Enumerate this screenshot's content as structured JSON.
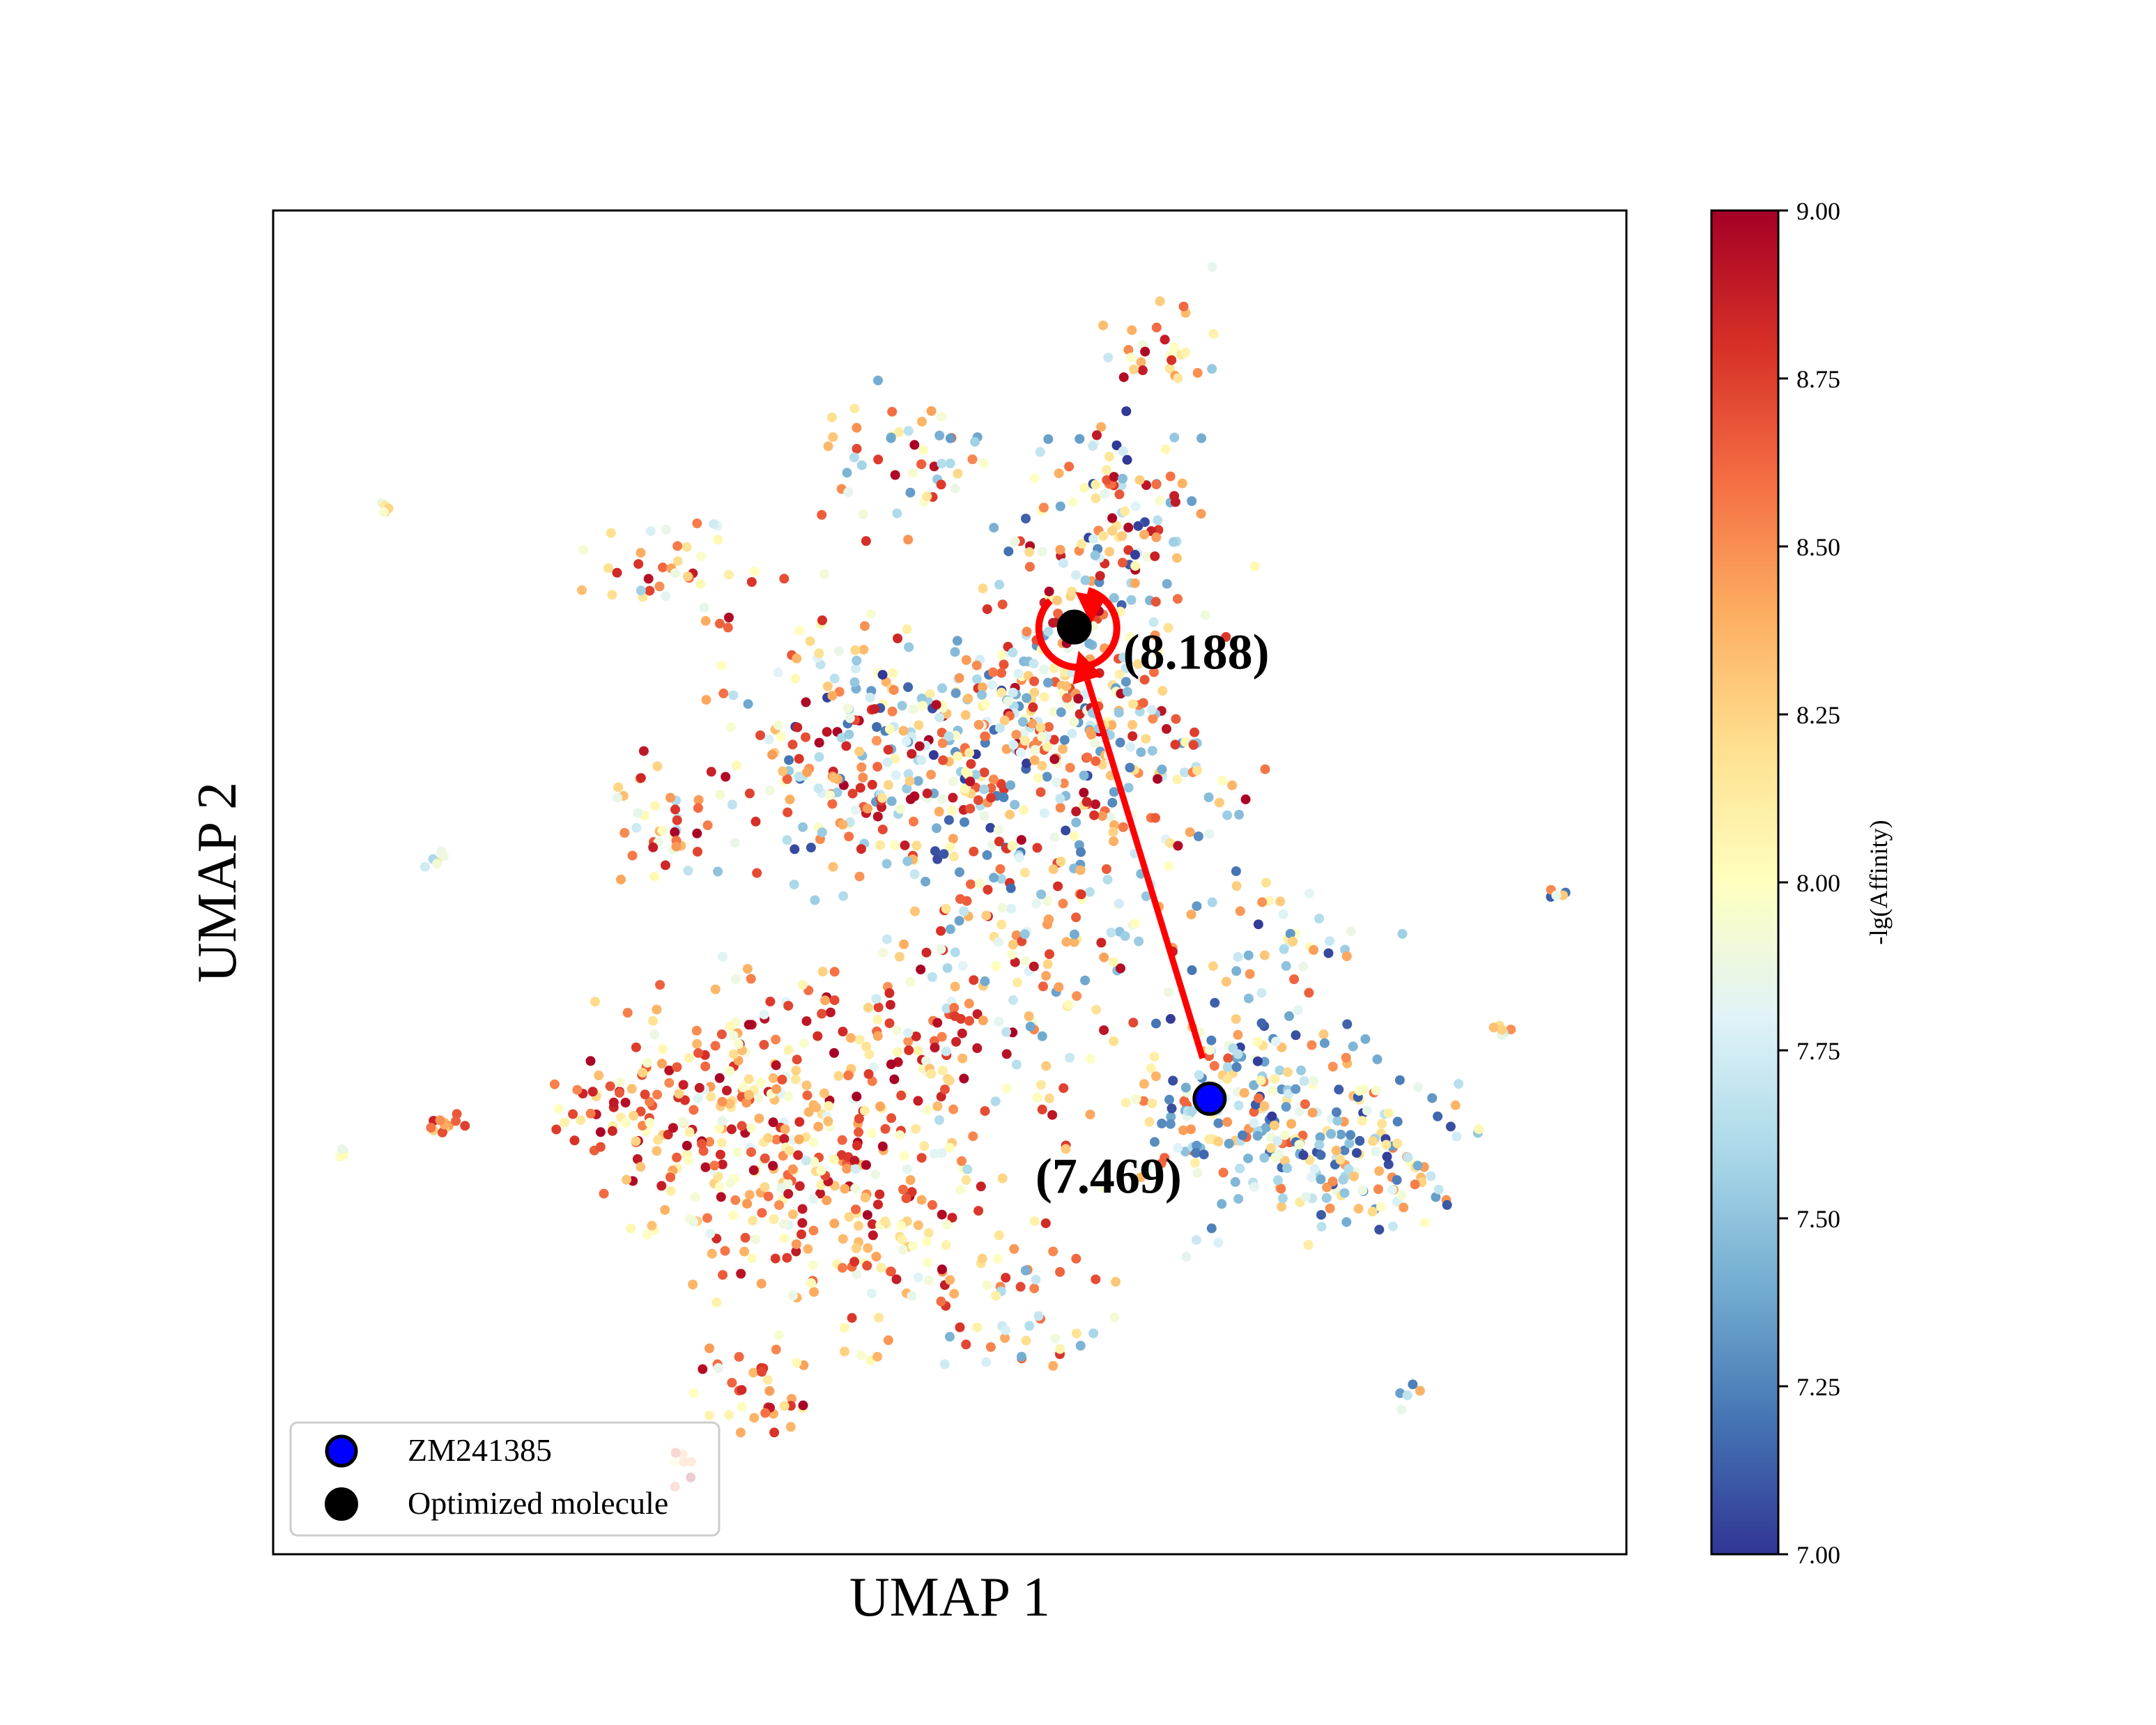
{
  "chart_data": {
    "type": "scatter",
    "title": "",
    "xlabel": "UMAP 1",
    "ylabel": "UMAP 2",
    "xlim": [
      0,
      100
    ],
    "ylim": [
      0,
      100
    ],
    "ticks_visible": false,
    "grid": false,
    "colorbar": {
      "label": "-lg(Affinity)",
      "range": [
        7.0,
        9.0
      ],
      "ticks": [
        "7.00",
        "7.25",
        "7.50",
        "7.75",
        "8.00",
        "8.25",
        "8.50",
        "8.75",
        "9.00"
      ],
      "colormap": "RdYlBu_r",
      "stops": [
        [
          0.0,
          "#313695"
        ],
        [
          0.1,
          "#4575b4"
        ],
        [
          0.2,
          "#74add1"
        ],
        [
          0.3,
          "#abd9e9"
        ],
        [
          0.4,
          "#e0f3f8"
        ],
        [
          0.5,
          "#ffffbf"
        ],
        [
          0.6,
          "#fee090"
        ],
        [
          0.7,
          "#fdae61"
        ],
        [
          0.8,
          "#f46d43"
        ],
        [
          0.9,
          "#d73027"
        ],
        [
          1.0,
          "#a50026"
        ]
      ]
    },
    "legend": {
      "placement": "lower-left",
      "entries": [
        {
          "label": "ZM241385",
          "color": "#0000ff",
          "edge": "#000000"
        },
        {
          "label": "Optimized molecule",
          "color": "#000000",
          "edge": "#000000"
        }
      ]
    },
    "highlighted": [
      {
        "name": "ZM241385",
        "x": 69.2,
        "y": 33.9,
        "value_label": "(7.469)",
        "color": "#0000ff"
      },
      {
        "name": "Optimized molecule",
        "x": 59.2,
        "y": 69.0,
        "value_label": "(8.188)",
        "color": "#000000"
      }
    ],
    "annotation_color": "#ff0000",
    "clusters": [
      {
        "x": 49,
        "y": 58,
        "sx": 8,
        "sy": 7,
        "n": 220,
        "lo": 7.0,
        "hi": 9.0
      },
      {
        "x": 58,
        "y": 64,
        "sx": 6,
        "sy": 6,
        "n": 220,
        "lo": 7.3,
        "hi": 9.0
      },
      {
        "x": 62,
        "y": 77,
        "sx": 5,
        "sy": 5,
        "n": 120,
        "lo": 7.0,
        "hi": 9.0
      },
      {
        "x": 41,
        "y": 60,
        "sx": 6,
        "sy": 8,
        "n": 110,
        "lo": 7.5,
        "hi": 9.0
      },
      {
        "x": 35,
        "y": 32,
        "sx": 7,
        "sy": 7,
        "n": 230,
        "lo": 7.8,
        "hi": 9.0
      },
      {
        "x": 44,
        "y": 24,
        "sx": 7,
        "sy": 6,
        "n": 130,
        "lo": 7.8,
        "hi": 9.0
      },
      {
        "x": 48,
        "y": 37,
        "sx": 7,
        "sy": 6,
        "n": 140,
        "lo": 7.6,
        "hi": 9.0
      },
      {
        "x": 58,
        "y": 46,
        "sx": 7,
        "sy": 6,
        "n": 100,
        "lo": 7.3,
        "hi": 9.0
      },
      {
        "x": 73,
        "y": 33,
        "sx": 7,
        "sy": 6,
        "n": 230,
        "lo": 7.0,
        "hi": 8.7
      },
      {
        "x": 82,
        "y": 30,
        "sx": 5,
        "sy": 4,
        "n": 90,
        "lo": 7.0,
        "hi": 8.6
      },
      {
        "x": 28,
        "y": 54,
        "sx": 3,
        "sy": 3,
        "n": 40,
        "lo": 7.6,
        "hi": 9.0
      },
      {
        "x": 26,
        "y": 33,
        "sx": 4,
        "sy": 3,
        "n": 50,
        "lo": 7.9,
        "hi": 9.0
      },
      {
        "x": 56,
        "y": 19,
        "sx": 5,
        "sy": 4,
        "n": 45,
        "lo": 7.4,
        "hi": 8.8
      },
      {
        "x": 30,
        "y": 73,
        "sx": 5,
        "sy": 3,
        "n": 40,
        "lo": 7.5,
        "hi": 9.0
      },
      {
        "x": 46,
        "y": 82,
        "sx": 5,
        "sy": 4,
        "n": 50,
        "lo": 7.3,
        "hi": 9.0
      },
      {
        "x": 66,
        "y": 90,
        "sx": 3,
        "sy": 3,
        "n": 28,
        "lo": 7.5,
        "hi": 9.0
      },
      {
        "x": 36,
        "y": 12,
        "sx": 4,
        "sy": 3,
        "n": 35,
        "lo": 7.8,
        "hi": 9.0
      },
      {
        "x": 64,
        "y": 57,
        "sx": 6,
        "sy": 5,
        "n": 70,
        "lo": 7.2,
        "hi": 9.0
      },
      {
        "x": 76,
        "y": 46,
        "sx": 4,
        "sy": 3,
        "n": 30,
        "lo": 7.0,
        "hi": 8.5
      },
      {
        "x": 12,
        "y": 52,
        "sx": 0.6,
        "sy": 0.6,
        "n": 6,
        "lo": 7.4,
        "hi": 8.2
      },
      {
        "x": 8,
        "y": 78,
        "sx": 0.5,
        "sy": 0.5,
        "n": 5,
        "lo": 7.8,
        "hi": 8.3
      },
      {
        "x": 5,
        "y": 30,
        "sx": 0.4,
        "sy": 0.4,
        "n": 4,
        "lo": 7.7,
        "hi": 8.1
      },
      {
        "x": 95,
        "y": 49,
        "sx": 0.6,
        "sy": 0.4,
        "n": 5,
        "lo": 7.0,
        "hi": 8.6
      },
      {
        "x": 91,
        "y": 39,
        "sx": 0.8,
        "sy": 0.6,
        "n": 6,
        "lo": 7.6,
        "hi": 8.6
      },
      {
        "x": 13,
        "y": 32,
        "sx": 1.2,
        "sy": 0.8,
        "n": 12,
        "lo": 8.2,
        "hi": 8.9
      },
      {
        "x": 84,
        "y": 12,
        "sx": 1,
        "sy": 0.8,
        "n": 6,
        "lo": 7.2,
        "hi": 8.6
      },
      {
        "x": 30,
        "y": 7,
        "sx": 1,
        "sy": 1,
        "n": 8,
        "lo": 7.6,
        "hi": 9.0
      }
    ]
  }
}
